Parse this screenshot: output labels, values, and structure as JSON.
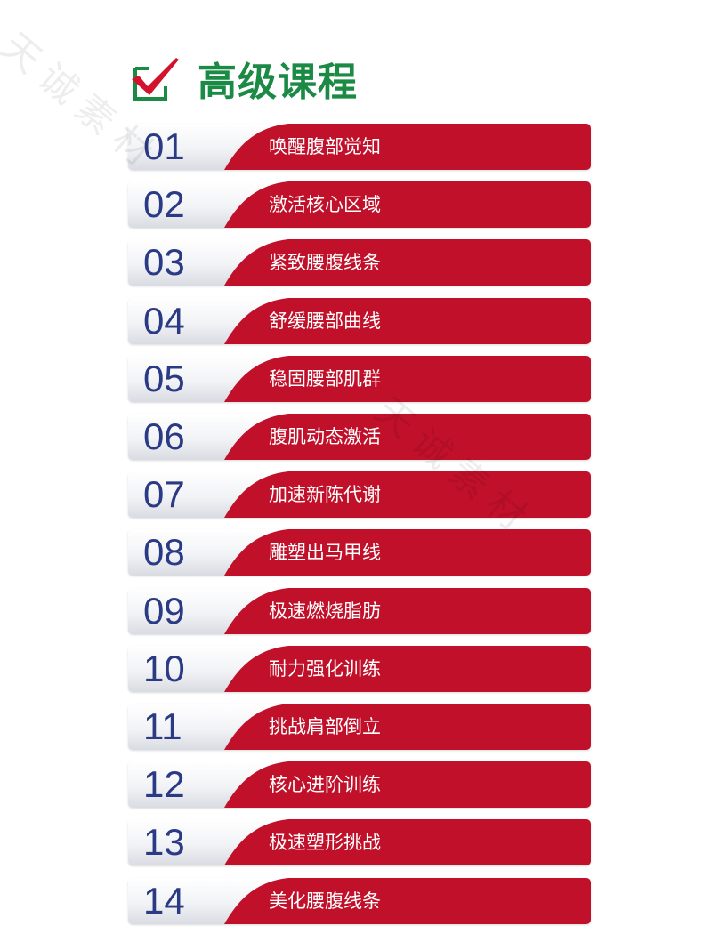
{
  "title": "高级课程",
  "colors": {
    "title": "#1b8a45",
    "red": "#c0102a",
    "number": "#2a3a84"
  },
  "watermark": "天诚素材",
  "items": [
    {
      "num": "01",
      "label": "唤醒腹部觉知"
    },
    {
      "num": "02",
      "label": "激活核心区域"
    },
    {
      "num": "03",
      "label": "紧致腰腹线条"
    },
    {
      "num": "04",
      "label": "舒缓腰部曲线"
    },
    {
      "num": "05",
      "label": "稳固腰部肌群"
    },
    {
      "num": "06",
      "label": "腹肌动态激活"
    },
    {
      "num": "07",
      "label": "加速新陈代谢"
    },
    {
      "num": "08",
      "label": "雕塑出马甲线"
    },
    {
      "num": "09",
      "label": "极速燃烧脂肪"
    },
    {
      "num": "10",
      "label": "耐力强化训练"
    },
    {
      "num": "11",
      "label": "挑战肩部倒立"
    },
    {
      "num": "12",
      "label": "核心进阶训练"
    },
    {
      "num": "13",
      "label": "极速塑形挑战"
    },
    {
      "num": "14",
      "label": "美化腰腹线条"
    }
  ]
}
